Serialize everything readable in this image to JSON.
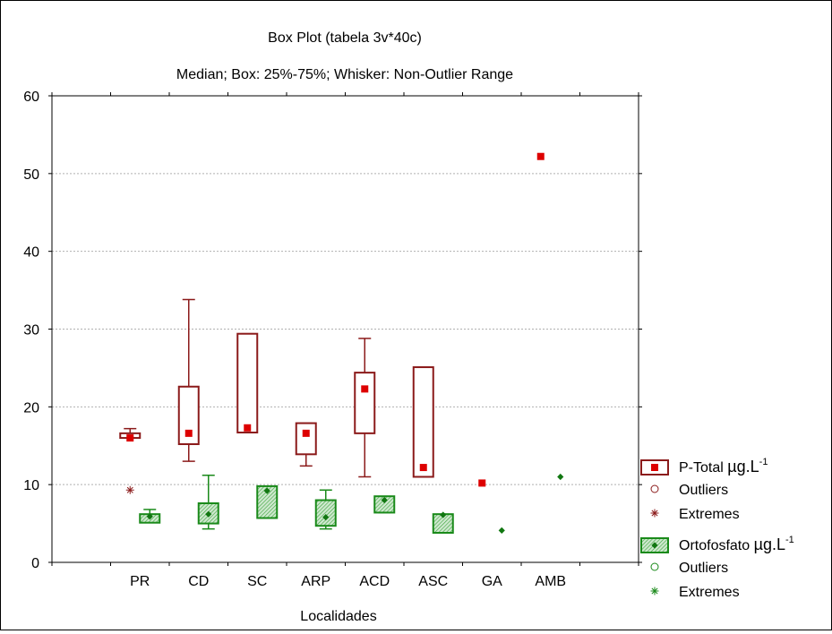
{
  "chart_data": {
    "type": "box",
    "title": "Box Plot (tabela 3v*40c)",
    "subtitle": "Median; Box: 25%-75%; Whisker: Non-Outlier Range",
    "xlabel": "Localidades",
    "ylabel": "",
    "ylim": [
      0,
      60
    ],
    "yticks": [
      "0",
      "10",
      "20",
      "30",
      "40",
      "50",
      "60"
    ],
    "grid": true,
    "legend_position": "right",
    "categories": [
      "PR",
      "CD",
      "SC",
      "ARP",
      "ACD",
      "ASC",
      "GA",
      "AMB"
    ],
    "series": [
      {
        "name": "P-Total",
        "unit": "µg.L",
        "unit_exp": "-1",
        "color": "#8b1a1a",
        "median_color": "#dd0000",
        "boxes": [
          {
            "category": "PR",
            "q1": 16.0,
            "q3": 16.6,
            "median": 16.0,
            "whisker_low": 16.0,
            "whisker_high": 17.2,
            "extremes": [
              9.3
            ]
          },
          {
            "category": "CD",
            "q1": 15.2,
            "q3": 22.6,
            "median": 16.6,
            "whisker_low": 13.0,
            "whisker_high": 33.8
          },
          {
            "category": "SC",
            "q1": 16.7,
            "q3": 29.4,
            "median": 17.3,
            "whisker_low": 16.7,
            "whisker_high": 29.4
          },
          {
            "category": "ARP",
            "q1": 13.9,
            "q3": 17.9,
            "median": 16.6,
            "whisker_low": 12.4,
            "whisker_high": 17.9
          },
          {
            "category": "ACD",
            "q1": 16.6,
            "q3": 24.4,
            "median": 22.3,
            "whisker_low": 11.0,
            "whisker_high": 28.8
          },
          {
            "category": "ASC",
            "q1": 11.0,
            "q3": 25.1,
            "median": 12.2,
            "whisker_low": 11.0,
            "whisker_high": 25.1
          },
          {
            "category": "GA",
            "median": 10.2
          },
          {
            "category": "AMB",
            "median": 52.2
          }
        ]
      },
      {
        "name": "Ortofosfato",
        "unit": "µg.L",
        "unit_exp": "-1",
        "color": "#1a8a1a",
        "fill": "#a8d8a8",
        "median_color": "#117711",
        "boxes": [
          {
            "category": "PR",
            "q1": 5.1,
            "q3": 6.2,
            "median": 5.9,
            "whisker_low": 5.1,
            "whisker_high": 6.8
          },
          {
            "category": "CD",
            "q1": 5.0,
            "q3": 7.6,
            "median": 6.2,
            "whisker_low": 4.3,
            "whisker_high": 11.2
          },
          {
            "category": "SC",
            "q1": 5.7,
            "q3": 9.8,
            "median": 9.2,
            "whisker_low": 5.7,
            "whisker_high": 9.8
          },
          {
            "category": "ARP",
            "q1": 4.7,
            "q3": 8.0,
            "median": 5.8,
            "whisker_low": 4.3,
            "whisker_high": 9.3
          },
          {
            "category": "ACD",
            "q1": 6.4,
            "q3": 8.5,
            "median": 8.0,
            "whisker_low": 6.4,
            "whisker_high": 8.5
          },
          {
            "category": "ASC",
            "q1": 3.8,
            "q3": 6.2,
            "median": 6.1,
            "whisker_low": 3.8,
            "whisker_high": 6.2
          },
          {
            "category": "GA",
            "median": 4.1
          },
          {
            "category": "AMB",
            "median": 11.0
          }
        ]
      }
    ],
    "legend": {
      "outliers_label": "Outliers",
      "extremes_label": "Extremes"
    }
  }
}
